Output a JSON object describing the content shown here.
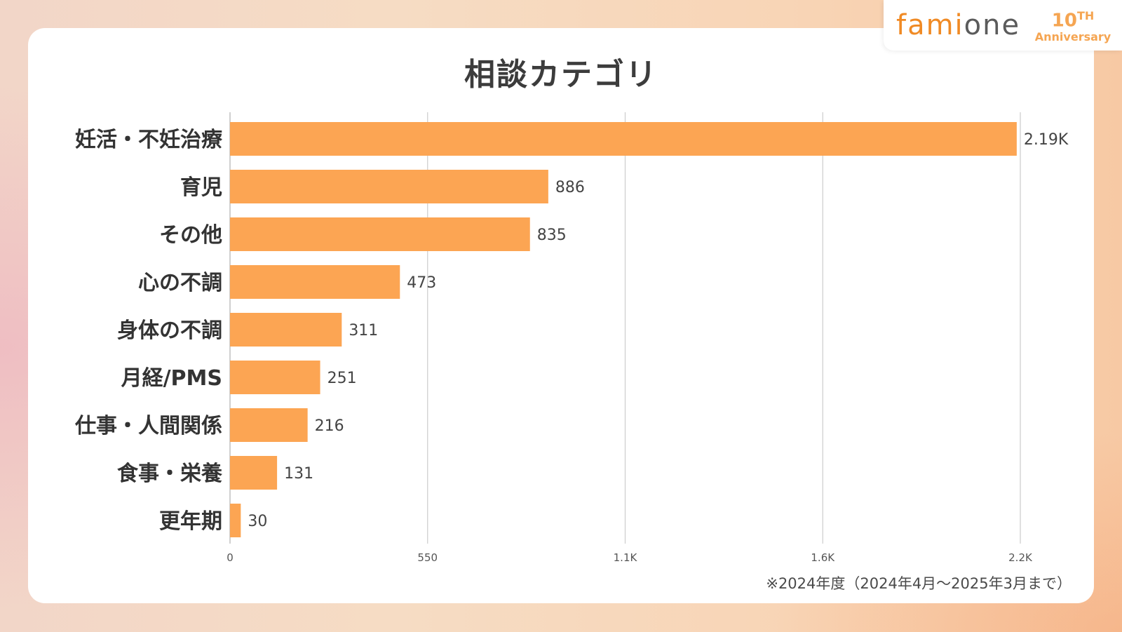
{
  "logo": {
    "fami": "fami",
    "one": "one",
    "anniversary_number": "10",
    "anniversary_suffix": "TH",
    "anniversary_word": "Anniversary"
  },
  "footnote": "※2024年度（2024年4月～2025年3月まで）",
  "colors": {
    "bar": "#fca553",
    "accent": "#f08a24",
    "grid": "#cccccc"
  },
  "chart_data": {
    "type": "bar",
    "orientation": "horizontal",
    "title": "相談カテゴリ",
    "categories": [
      "妊活・不妊治療",
      "育児",
      "その他",
      "心の不調",
      "身体の不調",
      "月経/PMS",
      "仕事・人間関係",
      "食事・栄養",
      "更年期"
    ],
    "values": [
      2190,
      886,
      835,
      473,
      311,
      251,
      216,
      131,
      30
    ],
    "value_labels": [
      "2.19K",
      "886",
      "835",
      "473",
      "311",
      "251",
      "216",
      "131",
      "30"
    ],
    "xticks": [
      0,
      550,
      1100,
      1650,
      2200
    ],
    "xtick_labels": [
      "0",
      "550",
      "1.1K",
      "1.6K",
      "2.2K"
    ],
    "xlim": [
      0,
      2200
    ],
    "grid": true,
    "legend": "none"
  }
}
